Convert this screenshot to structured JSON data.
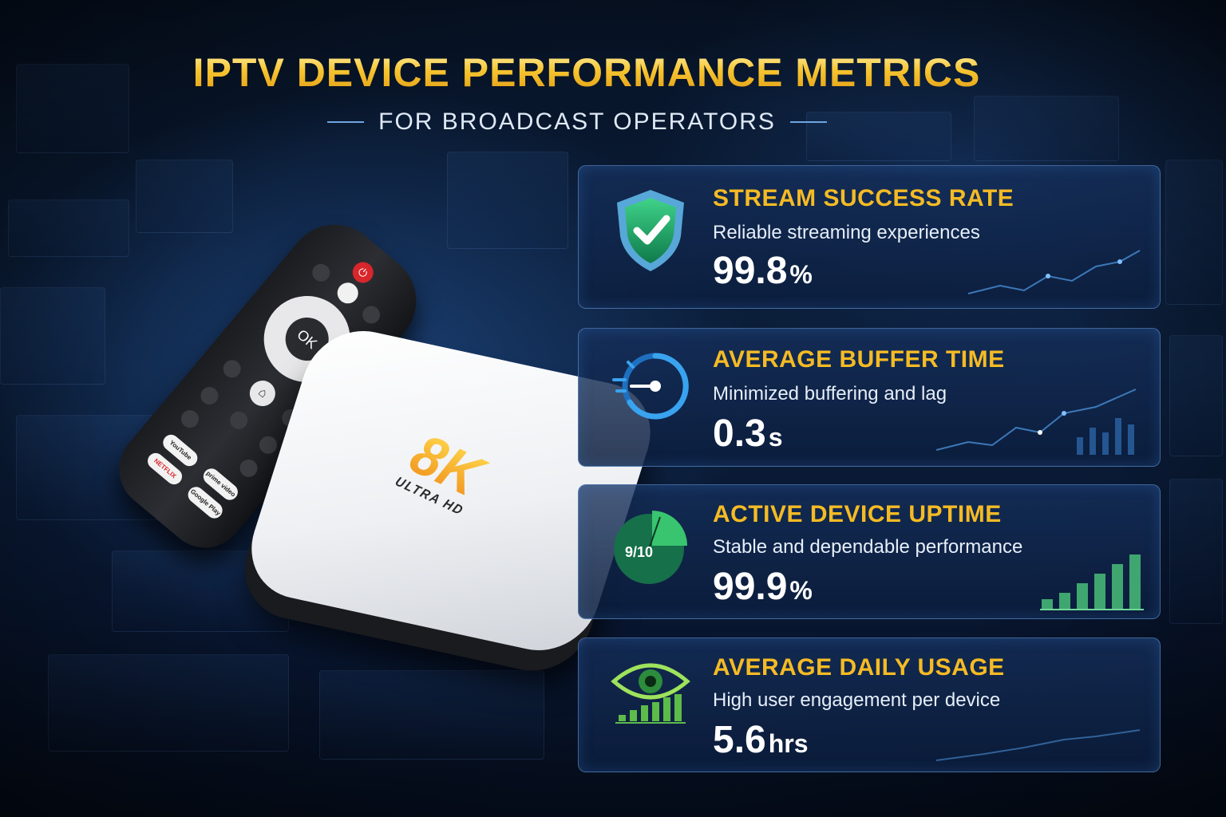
{
  "header": {
    "title": "IPTV DEVICE PERFORMANCE METRICS",
    "subtitle": "FOR BROADCAST OPERATORS"
  },
  "device": {
    "box_logo_main": "8K",
    "box_logo_sub": "ULTRA HD",
    "remote_ok_label": "OK",
    "remote_apps": [
      "YouTube",
      "prime video",
      "NETFLIX",
      "Google Play"
    ]
  },
  "metrics": [
    {
      "icon": "shield-check-icon",
      "title": "STREAM SUCCESS RATE",
      "description": "Reliable streaming experiences",
      "value": "99.8",
      "unit": "%"
    },
    {
      "icon": "stopwatch-icon",
      "title": "AVERAGE BUFFER TIME",
      "description": "Minimized buffering and lag",
      "value": "0.3",
      "unit": "s"
    },
    {
      "icon": "pie-chart-icon",
      "icon_label": "9/10",
      "title": "ACTIVE DEVICE UPTIME",
      "description": "Stable and dependable performance",
      "value": "99.9",
      "unit": "%"
    },
    {
      "icon": "eye-bars-icon",
      "title": "AVERAGE DAILY USAGE",
      "description": "High user engagement per device",
      "value": "5.6",
      "unit": "hrs"
    }
  ],
  "colors": {
    "accent_gold": "#f5bb24",
    "card_border": "#6ea0e1",
    "green": "#2fae63",
    "blue": "#3aa3ef"
  }
}
